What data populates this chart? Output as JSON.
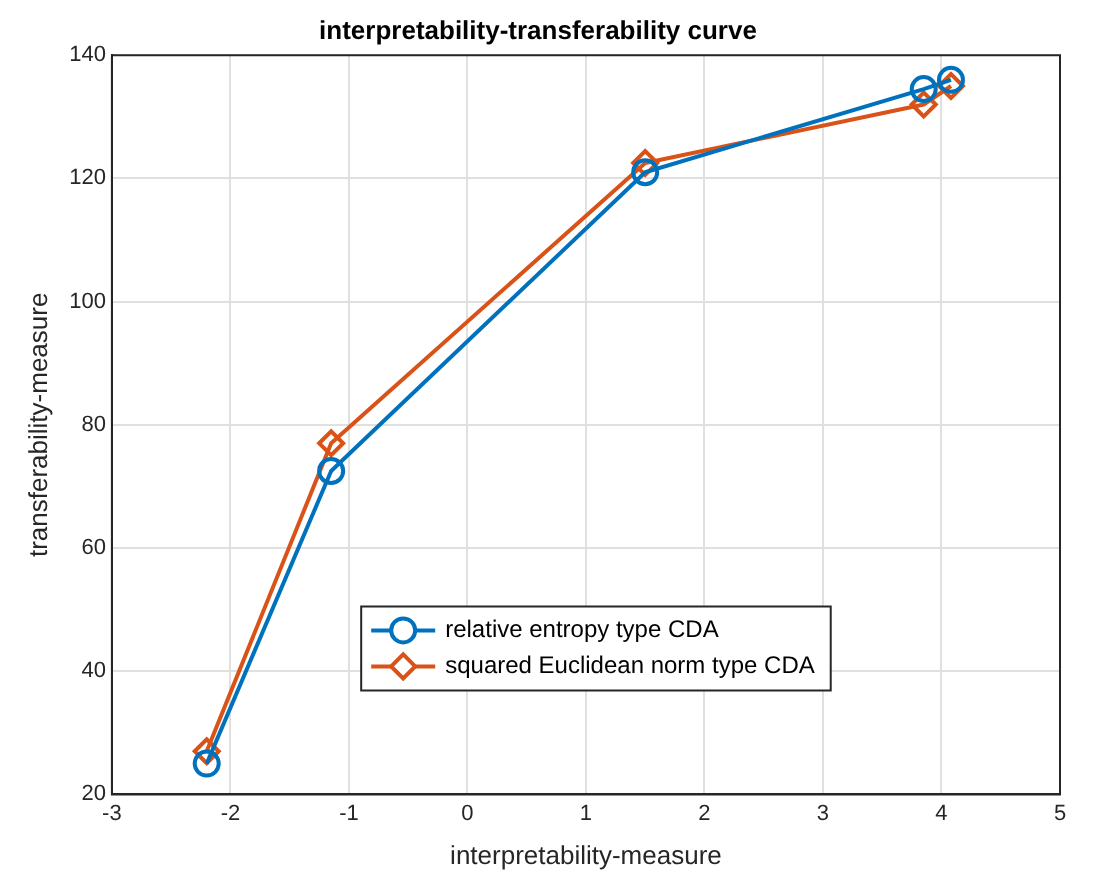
{
  "chart_data": {
    "type": "line",
    "title": "interpretability-transferability curve",
    "xlabel": "interpretability-measure",
    "ylabel": "transferability-measure",
    "xlim": [
      -3,
      5
    ],
    "xticks": [
      -3,
      -2,
      -1,
      0,
      1,
      2,
      3,
      4,
      5
    ],
    "ylim": [
      20,
      140
    ],
    "yticks": [
      20,
      40,
      60,
      80,
      100,
      120,
      140
    ],
    "grid": true,
    "legend": "bottom",
    "line_style": "solid",
    "series": [
      {
        "name": "relative entropy type CDA",
        "color": "#0072bd",
        "marker": "circle",
        "x": [
          -2.2,
          -1.15,
          1.5,
          3.85,
          4.08
        ],
        "values": [
          25,
          72.5,
          121,
          134.5,
          136
        ]
      },
      {
        "name": "squared Euclidean norm type CDA",
        "color": "#d95319",
        "marker": "diamond",
        "x": [
          -2.2,
          -1.15,
          1.5,
          3.85,
          4.08
        ],
        "values": [
          27,
          77,
          122.5,
          132,
          135
        ]
      }
    ]
  }
}
